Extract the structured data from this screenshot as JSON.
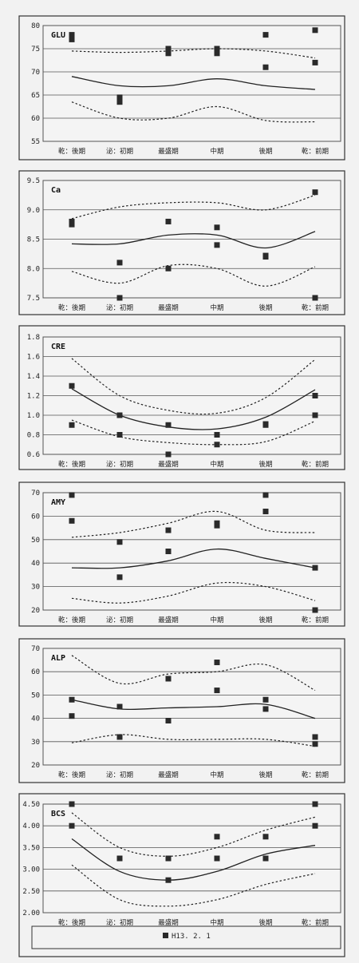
{
  "x_categories": [
    "乾：後期",
    "泌：初期",
    "最盛期",
    "中期",
    "後期",
    "乾：前期"
  ],
  "legend": {
    "label": "H13. 2. 1"
  },
  "chart_data": [
    {
      "type": "scatter",
      "label": "GLU",
      "ylim": [
        55,
        80
      ],
      "yticks": [
        55,
        60,
        65,
        70,
        75,
        80
      ],
      "tick_format": "int",
      "points": [
        [
          0,
          78
        ],
        [
          0,
          77
        ],
        [
          1,
          64.5
        ],
        [
          1,
          63.5
        ],
        [
          2,
          75
        ],
        [
          2,
          74
        ],
        [
          3,
          75
        ],
        [
          3,
          74
        ],
        [
          4,
          78
        ],
        [
          4,
          71
        ],
        [
          5,
          79
        ],
        [
          5,
          72
        ]
      ],
      "mean": [
        69,
        67,
        67,
        68.5,
        67,
        66.2
      ],
      "upper": [
        74.5,
        74.2,
        74.5,
        75,
        74.5,
        73
      ],
      "lower": [
        63.5,
        60,
        60,
        62.5,
        59.5,
        59.2
      ]
    },
    {
      "type": "scatter",
      "label": "Ca",
      "ylim": [
        7.5,
        9.5
      ],
      "yticks": [
        7.5,
        8.0,
        8.5,
        9.0,
        9.5
      ],
      "tick_format": "1dp",
      "points": [
        [
          0,
          8.8
        ],
        [
          0,
          8.75
        ],
        [
          1,
          8.1
        ],
        [
          1,
          7.5
        ],
        [
          2,
          8.8
        ],
        [
          2,
          8.0
        ],
        [
          3,
          8.7
        ],
        [
          3,
          8.4
        ],
        [
          4,
          8.22
        ],
        [
          4,
          8.2
        ],
        [
          5,
          9.3
        ],
        [
          5,
          7.5
        ]
      ],
      "mean": [
        8.42,
        8.42,
        8.57,
        8.57,
        8.35,
        8.63
      ],
      "upper": [
        8.85,
        9.05,
        9.12,
        9.12,
        9.0,
        9.25
      ],
      "lower": [
        7.95,
        7.75,
        8.05,
        8.0,
        7.7,
        8.03
      ]
    },
    {
      "type": "scatter",
      "label": "CRE",
      "ylim": [
        0.6,
        1.8
      ],
      "yticks": [
        0.6,
        0.8,
        1.0,
        1.2,
        1.4,
        1.6,
        1.8
      ],
      "tick_format": "1dp",
      "points": [
        [
          0,
          1.3
        ],
        [
          0,
          0.9
        ],
        [
          1,
          1.0
        ],
        [
          1,
          0.8
        ],
        [
          2,
          0.9
        ],
        [
          2,
          0.6
        ],
        [
          3,
          0.8
        ],
        [
          3,
          0.7
        ],
        [
          4,
          0.91
        ],
        [
          4,
          0.9
        ],
        [
          5,
          1.2
        ],
        [
          5,
          1.0
        ]
      ],
      "mean": [
        1.27,
        1.0,
        0.88,
        0.86,
        0.98,
        1.26
      ],
      "upper": [
        1.58,
        1.2,
        1.05,
        1.02,
        1.18,
        1.57
      ],
      "lower": [
        0.95,
        0.78,
        0.72,
        0.7,
        0.73,
        0.94
      ]
    },
    {
      "type": "scatter",
      "label": "AMY",
      "ylim": [
        20,
        70
      ],
      "yticks": [
        20,
        30,
        40,
        50,
        60,
        70
      ],
      "tick_format": "int",
      "points": [
        [
          0,
          69
        ],
        [
          0,
          58
        ],
        [
          1,
          49
        ],
        [
          1,
          34
        ],
        [
          2,
          54
        ],
        [
          2,
          45
        ],
        [
          3,
          57
        ],
        [
          3,
          56
        ],
        [
          4,
          69
        ],
        [
          4,
          62
        ],
        [
          5,
          38
        ],
        [
          5,
          20
        ]
      ],
      "mean": [
        38,
        38,
        41,
        46,
        42,
        38
      ],
      "upper": [
        51,
        53,
        57,
        62,
        54,
        53
      ],
      "lower": [
        25,
        23,
        26,
        31.5,
        30,
        24
      ]
    },
    {
      "type": "scatter",
      "label": "ALP",
      "ylim": [
        20,
        70
      ],
      "yticks": [
        20,
        30,
        40,
        50,
        60,
        70
      ],
      "tick_format": "int",
      "points": [
        [
          0,
          48
        ],
        [
          0,
          41
        ],
        [
          1,
          45
        ],
        [
          1,
          32
        ],
        [
          2,
          57
        ],
        [
          2,
          39
        ],
        [
          3,
          64
        ],
        [
          3,
          52
        ],
        [
          4,
          48
        ],
        [
          4,
          44
        ],
        [
          5,
          32
        ],
        [
          5,
          29
        ]
      ],
      "mean": [
        48,
        44,
        44.5,
        45,
        46,
        40
      ],
      "upper": [
        67,
        55,
        59,
        60,
        63,
        52
      ],
      "lower": [
        29.5,
        33,
        31,
        31,
        31,
        28
      ]
    },
    {
      "type": "scatter",
      "label": "BCS",
      "ylim": [
        2.0,
        4.5
      ],
      "yticks": [
        2.0,
        2.5,
        3.0,
        3.5,
        4.0,
        4.5
      ],
      "tick_format": "2dp",
      "points": [
        [
          0,
          4.5
        ],
        [
          0,
          4.0
        ],
        [
          1,
          3.25
        ],
        [
          2,
          3.25
        ],
        [
          2,
          2.75
        ],
        [
          3,
          3.75
        ],
        [
          3,
          3.25
        ],
        [
          4,
          3.75
        ],
        [
          4,
          3.25
        ],
        [
          5,
          4.5
        ],
        [
          5,
          4.0
        ]
      ],
      "mean": [
        3.7,
        2.95,
        2.75,
        2.95,
        3.35,
        3.55
      ],
      "upper": [
        4.3,
        3.5,
        3.3,
        3.5,
        3.9,
        4.2
      ],
      "lower": [
        3.1,
        2.3,
        2.15,
        2.3,
        2.65,
        2.9
      ]
    }
  ]
}
